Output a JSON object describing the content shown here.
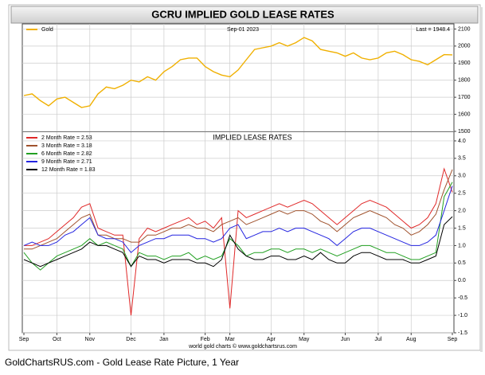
{
  "title": "GCRU IMPLIED GOLD LEASE RATES",
  "credit": "world gold charts © www.goldchartsrus.com",
  "caption": "GoldChartsRUS.com - Gold Lease Rate Picture, 1 Year",
  "chart_data": [
    {
      "type": "line",
      "date": "Sep-01 2023",
      "last": "Last = 1948.4",
      "ylim": [
        1500,
        2130
      ],
      "yticks": [
        1500,
        1600,
        1700,
        1800,
        1900,
        2000,
        2100
      ],
      "grid": true,
      "series": [
        {
          "name": "Gold",
          "color": "#f0b000",
          "values": [
            1710,
            1720,
            1680,
            1650,
            1690,
            1700,
            1670,
            1640,
            1650,
            1720,
            1760,
            1750,
            1770,
            1800,
            1790,
            1820,
            1800,
            1850,
            1880,
            1920,
            1930,
            1930,
            1880,
            1850,
            1830,
            1820,
            1860,
            1920,
            1980,
            1990,
            2000,
            2020,
            2000,
            2020,
            2050,
            2030,
            1980,
            1970,
            1960,
            1940,
            1960,
            1930,
            1920,
            1930,
            1960,
            1970,
            1950,
            1920,
            1910,
            1890,
            1920,
            1950,
            1948.4
          ]
        }
      ]
    },
    {
      "type": "line",
      "title": "IMPLIED LEASE RATES",
      "categories": [
        "Sep",
        null,
        null,
        null,
        "Oct",
        null,
        null,
        null,
        "Nov",
        null,
        null,
        null,
        null,
        "Dec",
        null,
        null,
        null,
        "Jan",
        null,
        null,
        null,
        null,
        "Feb",
        null,
        null,
        "Mar",
        null,
        null,
        null,
        null,
        "Apr",
        null,
        null,
        null,
        "May",
        null,
        null,
        null,
        null,
        "Jun",
        null,
        null,
        null,
        "Jul",
        null,
        null,
        null,
        "Aug",
        null,
        null,
        null,
        null,
        "Sep"
      ],
      "ylim": [
        -1.5,
        4.25
      ],
      "yticks": [
        -1.5,
        {
          "value": -1,
          "label": "-1.0"
        },
        -0.5,
        {
          "value": 0,
          "label": "0.0"
        },
        0.5,
        {
          "value": 1,
          "label": "1.0"
        },
        1.5,
        {
          "value": 2,
          "label": "2.0"
        },
        2.5,
        {
          "value": 3,
          "label": "3.0"
        },
        3.5,
        {
          "value": 4,
          "label": "4.0"
        }
      ],
      "grid": true,
      "series": [
        {
          "name": "2 Month Rate  = 2.53",
          "color": "#e02828",
          "values": [
            1.0,
            1.0,
            1.1,
            1.2,
            1.4,
            1.6,
            1.8,
            2.1,
            2.2,
            1.5,
            1.4,
            1.3,
            1.3,
            -1.0,
            1.2,
            1.5,
            1.4,
            1.5,
            1.6,
            1.7,
            1.8,
            1.6,
            1.7,
            1.5,
            1.8,
            -0.8,
            2.0,
            1.8,
            1.9,
            2.0,
            2.1,
            2.2,
            2.1,
            2.2,
            2.3,
            2.2,
            2.0,
            1.8,
            1.6,
            1.8,
            2.0,
            2.2,
            2.3,
            2.2,
            2.1,
            1.9,
            1.7,
            1.5,
            1.6,
            1.8,
            2.2,
            3.2,
            2.53
          ]
        },
        {
          "name": "3 Month Rate  = 3.18",
          "color": "#a0522d",
          "values": [
            0.9,
            0.9,
            1.0,
            1.1,
            1.2,
            1.4,
            1.6,
            1.8,
            1.9,
            1.3,
            1.3,
            1.2,
            1.2,
            1.1,
            1.1,
            1.3,
            1.3,
            1.4,
            1.5,
            1.5,
            1.6,
            1.5,
            1.5,
            1.4,
            1.6,
            1.7,
            1.8,
            1.6,
            1.7,
            1.8,
            1.9,
            2.0,
            1.9,
            2.0,
            2.0,
            1.9,
            1.7,
            1.6,
            1.4,
            1.6,
            1.8,
            1.9,
            2.0,
            1.9,
            1.8,
            1.6,
            1.5,
            1.3,
            1.4,
            1.6,
            1.9,
            2.6,
            3.18
          ]
        },
        {
          "name": "6 Month Rate  = 2.82",
          "color": "#22a022",
          "values": [
            0.8,
            0.5,
            0.3,
            0.5,
            0.7,
            0.8,
            0.9,
            1.0,
            1.2,
            1.0,
            1.1,
            1.0,
            0.9,
            0.4,
            0.8,
            0.7,
            0.7,
            0.6,
            0.7,
            0.7,
            0.8,
            0.6,
            0.7,
            0.6,
            0.7,
            1.2,
            1.0,
            0.7,
            0.8,
            0.8,
            0.9,
            0.9,
            0.8,
            0.9,
            0.9,
            0.8,
            0.9,
            0.8,
            0.7,
            0.8,
            0.9,
            1.0,
            1.0,
            0.9,
            0.8,
            0.8,
            0.7,
            0.6,
            0.6,
            0.7,
            0.8,
            2.4,
            2.82
          ]
        },
        {
          "name": "9 Month Rate  = 2.71",
          "color": "#2424e0",
          "values": [
            1.0,
            1.1,
            1.0,
            1.0,
            1.1,
            1.3,
            1.4,
            1.6,
            1.8,
            1.3,
            1.2,
            1.2,
            1.1,
            0.8,
            1.0,
            1.1,
            1.2,
            1.2,
            1.3,
            1.3,
            1.3,
            1.2,
            1.2,
            1.1,
            1.2,
            1.5,
            1.6,
            1.2,
            1.3,
            1.4,
            1.4,
            1.5,
            1.4,
            1.5,
            1.5,
            1.4,
            1.3,
            1.2,
            1.0,
            1.2,
            1.4,
            1.5,
            1.5,
            1.4,
            1.3,
            1.2,
            1.1,
            1.0,
            1.0,
            1.1,
            1.3,
            2.0,
            2.71
          ]
        },
        {
          "name": "12 Month Rate  = 1.83",
          "color": "#000000",
          "values": [
            0.6,
            0.5,
            0.4,
            0.5,
            0.6,
            0.7,
            0.8,
            0.9,
            1.1,
            1.0,
            1.0,
            0.9,
            0.8,
            0.4,
            0.7,
            0.6,
            0.6,
            0.5,
            0.6,
            0.6,
            0.6,
            0.5,
            0.5,
            0.4,
            0.6,
            1.3,
            0.9,
            0.7,
            0.6,
            0.6,
            0.7,
            0.7,
            0.6,
            0.6,
            0.7,
            0.6,
            0.8,
            0.6,
            0.5,
            0.5,
            0.7,
            0.8,
            0.8,
            0.7,
            0.6,
            0.6,
            0.6,
            0.5,
            0.5,
            0.6,
            0.7,
            1.6,
            1.83
          ]
        }
      ]
    }
  ]
}
